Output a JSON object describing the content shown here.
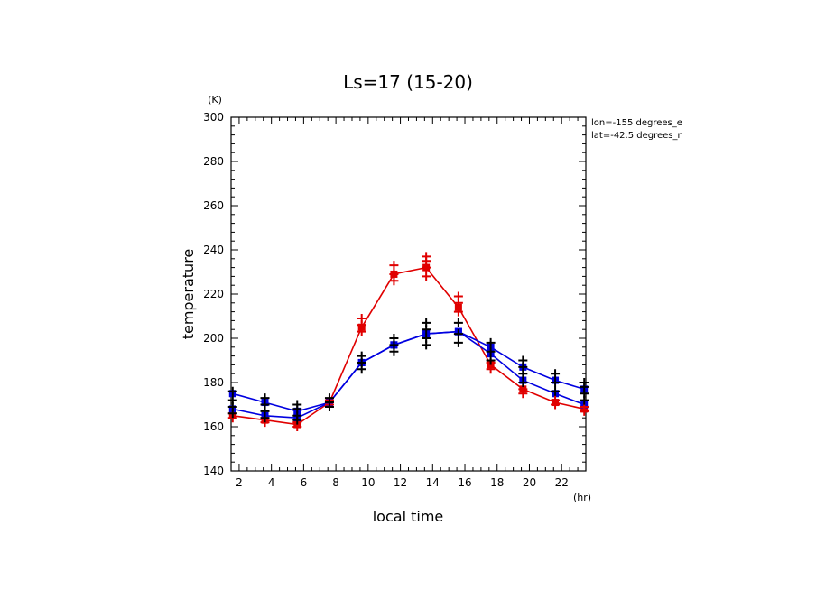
{
  "chart_data": {
    "type": "line",
    "title": "Ls=17 (15-20)",
    "xlabel": "local time",
    "ylabel": "temperature",
    "x_unit": "(hr)",
    "y_unit": "(K)",
    "xlim": [
      1.5,
      23.5
    ],
    "ylim": [
      140,
      300
    ],
    "x_ticks": [
      2,
      4,
      6,
      8,
      10,
      12,
      14,
      16,
      18,
      20,
      22
    ],
    "y_ticks": [
      140,
      160,
      180,
      200,
      220,
      240,
      260,
      280,
      300
    ],
    "annotations": [
      "lon=-155 degrees_e",
      "lat=-42.5 degrees_n"
    ],
    "x": [
      1.6,
      3.6,
      5.6,
      7.6,
      9.6,
      11.6,
      13.6,
      15.6,
      17.6,
      19.6,
      21.6,
      23.4
    ],
    "series": [
      {
        "color": "#e00000",
        "values": [
          165,
          163,
          161,
          171,
          205,
          229,
          232,
          214,
          188,
          177,
          171,
          168
        ]
      },
      {
        "color": "#0000e0",
        "values": [
          168,
          165,
          164,
          171,
          189,
          197,
          202,
          203,
          193,
          181,
          175,
          170
        ]
      },
      {
        "color": "#0000e0",
        "values": [
          175,
          171,
          167,
          171,
          189,
          197,
          202,
          203,
          196,
          187,
          181,
          177
        ]
      }
    ],
    "scatter": [
      {
        "color": "#e00000",
        "points": [
          [
            1.6,
            164
          ],
          [
            1.6,
            166
          ],
          [
            3.6,
            162
          ],
          [
            3.6,
            164
          ],
          [
            5.6,
            160
          ],
          [
            5.6,
            162
          ],
          [
            7.6,
            170
          ],
          [
            7.6,
            172
          ],
          [
            9.6,
            203
          ],
          [
            9.6,
            206
          ],
          [
            9.6,
            209
          ],
          [
            11.6,
            226
          ],
          [
            11.6,
            229
          ],
          [
            11.6,
            233
          ],
          [
            13.6,
            228
          ],
          [
            13.6,
            232
          ],
          [
            13.6,
            235
          ],
          [
            13.6,
            237
          ],
          [
            15.6,
            212
          ],
          [
            15.6,
            216
          ],
          [
            15.6,
            219
          ],
          [
            17.6,
            186
          ],
          [
            17.6,
            189
          ],
          [
            19.6,
            175
          ],
          [
            19.6,
            177
          ],
          [
            21.6,
            170
          ],
          [
            21.6,
            172
          ],
          [
            23.4,
            167
          ],
          [
            23.4,
            169
          ]
        ]
      },
      {
        "color": "#000000",
        "points": [
          [
            1.6,
            166
          ],
          [
            1.6,
            169
          ],
          [
            1.6,
            172
          ],
          [
            1.6,
            176
          ],
          [
            3.6,
            164
          ],
          [
            3.6,
            167
          ],
          [
            3.6,
            170
          ],
          [
            3.6,
            173
          ],
          [
            5.6,
            163
          ],
          [
            5.6,
            165
          ],
          [
            5.6,
            168
          ],
          [
            5.6,
            170
          ],
          [
            7.6,
            169
          ],
          [
            7.6,
            171
          ],
          [
            7.6,
            173
          ],
          [
            9.6,
            186
          ],
          [
            9.6,
            189
          ],
          [
            9.6,
            192
          ],
          [
            11.6,
            194
          ],
          [
            11.6,
            197
          ],
          [
            11.6,
            200
          ],
          [
            13.6,
            197
          ],
          [
            13.6,
            200
          ],
          [
            13.6,
            204
          ],
          [
            13.6,
            207
          ],
          [
            15.6,
            198
          ],
          [
            15.6,
            202
          ],
          [
            15.6,
            207
          ],
          [
            17.6,
            190
          ],
          [
            17.6,
            194
          ],
          [
            17.6,
            198
          ],
          [
            19.6,
            180
          ],
          [
            19.6,
            184
          ],
          [
            19.6,
            187
          ],
          [
            19.6,
            190
          ],
          [
            21.6,
            176
          ],
          [
            21.6,
            180
          ],
          [
            21.6,
            184
          ],
          [
            23.4,
            172
          ],
          [
            23.4,
            175
          ],
          [
            23.4,
            178
          ],
          [
            23.4,
            180
          ]
        ]
      }
    ],
    "grid": false,
    "legend": "none"
  }
}
